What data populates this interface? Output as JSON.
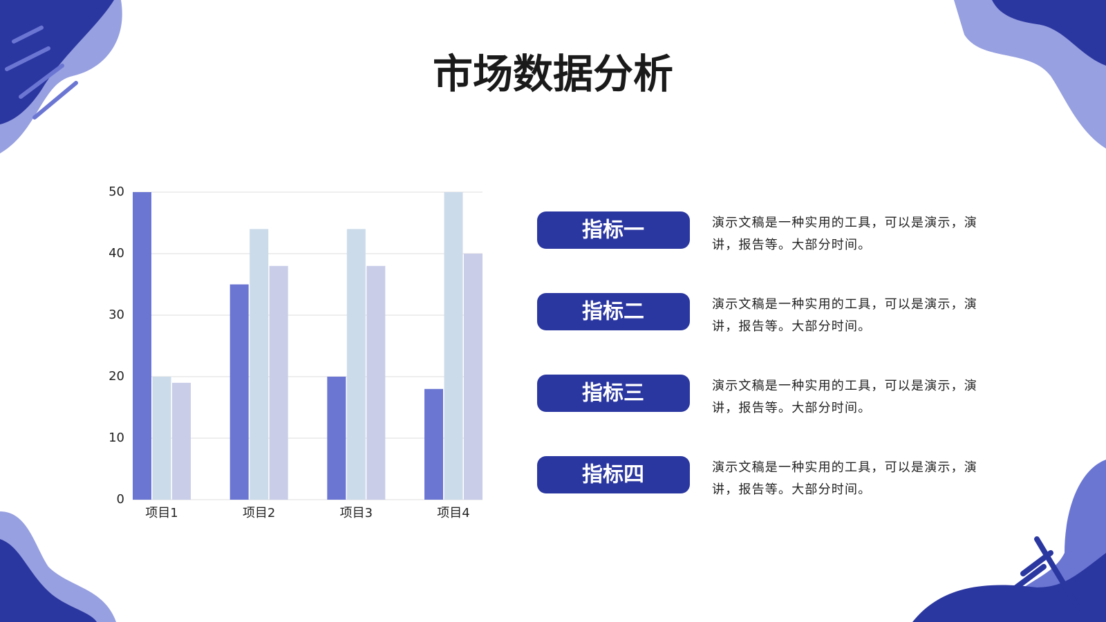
{
  "title": "市场数据分析",
  "chart_data": {
    "type": "bar",
    "categories": [
      "项目1",
      "项目2",
      "项目3",
      "项目4"
    ],
    "series": [
      {
        "color": "#6b76d3",
        "values": [
          50,
          35,
          20,
          18
        ]
      },
      {
        "color": "#ccdbea",
        "values": [
          20,
          44,
          44,
          50
        ]
      },
      {
        "color": "#c9cde8",
        "values": [
          19,
          38,
          38,
          40
        ]
      }
    ],
    "ylim": [
      0,
      50
    ],
    "yticks": [
      0,
      10,
      20,
      30,
      40,
      50
    ],
    "grid": true
  },
  "indicators": [
    {
      "label": "指标一",
      "text": "演示文稿是一种实用的工具，可以是演示，演讲，报告等。大部分时间。"
    },
    {
      "label": "指标二",
      "text": "演示文稿是一种实用的工具，可以是演示，演讲，报告等。大部分时间。"
    },
    {
      "label": "指标三",
      "text": "演示文稿是一种实用的工具，可以是演示，演讲，报告等。大部分时间。"
    },
    {
      "label": "指标四",
      "text": "演示文稿是一种实用的工具，可以是演示，演讲，报告等。大部分时间。"
    }
  ]
}
